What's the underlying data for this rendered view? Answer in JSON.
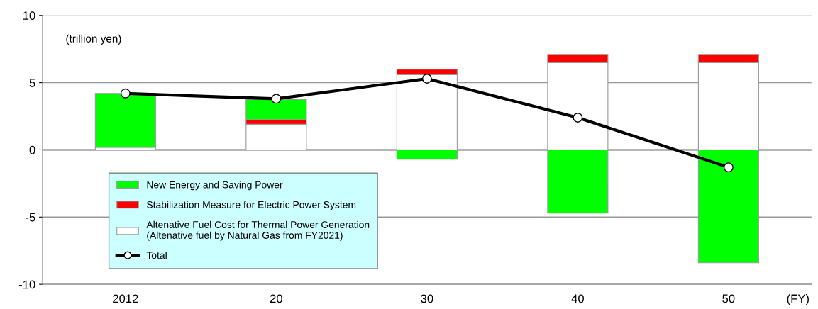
{
  "chart_data": {
    "type": "bar",
    "stacked": true,
    "categories": [
      "2012",
      "20",
      "30",
      "40",
      "50"
    ],
    "xlabel": "(FY)",
    "ylim": [
      -10,
      10
    ],
    "yticks": [
      -10,
      -5,
      0,
      5,
      10
    ],
    "grid": "y",
    "legend": "bottom left",
    "series": [
      {
        "name": "Altenative Fuel Cost for Thermal Power Generation\n(Altenative fuel by Natural Gas from FY2021)",
        "color": "#ffffff",
        "values": [
          0.2,
          1.9,
          5.6,
          6.5,
          6.5
        ]
      },
      {
        "name": "Stabilization Measure for Electric Power System",
        "color": "#ff0000",
        "values": [
          0,
          0.35,
          0.4,
          0.6,
          0.6
        ]
      },
      {
        "name": "New Energy and Saving Power",
        "color": "#00ff00",
        "values": [
          4.0,
          1.5,
          -0.7,
          -4.7,
          -8.4
        ]
      },
      {
        "name": "Total",
        "type": "line",
        "color": "#000000",
        "marker": "circle",
        "values": [
          4.2,
          3.8,
          5.3,
          2.4,
          -1.3
        ]
      }
    ],
    "annotations": [
      "(trillion yen)"
    ]
  }
}
